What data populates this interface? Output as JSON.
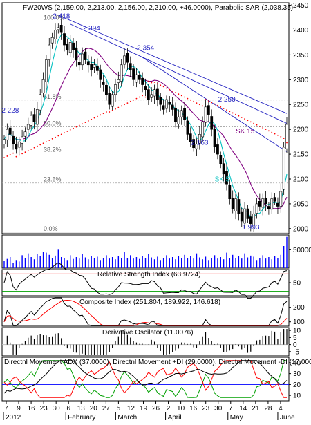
{
  "chart_data": {
    "type": "candlestick",
    "main": {
      "title": "FW20WS (2,159.00, 2,213.00, 2,156.00, 2,210.00, +46.0000), Parabolic SAR (2,038.35)",
      "y_ticks": [
        2000,
        2050,
        2100,
        2150,
        2200,
        2250,
        2300,
        2350,
        2400,
        2450
      ],
      "y_tick_labels": [
        "2000",
        "2050",
        "2100",
        "2150",
        "2200",
        "2250",
        "2300",
        "2350",
        "2400",
        "2450"
      ],
      "ylim": [
        1990,
        2455
      ],
      "fib_levels": [
        {
          "label": "100.0%",
          "value": 2418
        },
        {
          "label": "61.8%",
          "value": 2259
        },
        {
          "label": "50.0%",
          "value": 2205
        },
        {
          "label": "38.2%",
          "value": 2152
        },
        {
          "label": "23.6%",
          "value": 2092
        },
        {
          "label": "0.0%",
          "value": 1993
        }
      ],
      "peak_labels": [
        {
          "text": "2 418",
          "x": 18,
          "y": 2418
        },
        {
          "text": "2 394",
          "x": 28,
          "y": 2394
        },
        {
          "text": "2 354",
          "x": 46,
          "y": 2354
        },
        {
          "text": "2 228",
          "x": 1,
          "y": 2228
        },
        {
          "text": "2 250",
          "x": 73,
          "y": 2250
        },
        {
          "text": "2 163",
          "x": 64,
          "y": 2163
        },
        {
          "text": "1 993",
          "x": 81,
          "y": 1993
        }
      ],
      "ma_labels": [
        {
          "text": "SK 15",
          "x": 77,
          "y": 2192
        },
        {
          "text": "SK 5",
          "x": 70,
          "y": 2095
        }
      ],
      "x_start_day": 0,
      "closes": [
        2180,
        2200,
        2190,
        2170,
        2160,
        2175,
        2185,
        2195,
        2210,
        2228,
        2215,
        2240,
        2270,
        2300,
        2340,
        2370,
        2385,
        2400,
        2405,
        2395,
        2370,
        2360,
        2375,
        2360,
        2340,
        2330,
        2352,
        2340,
        2330,
        2320,
        2330,
        2318,
        2300,
        2290,
        2270,
        2250,
        2270,
        2290,
        2300,
        2330,
        2348,
        2335,
        2320,
        2300,
        2310,
        2300,
        2290,
        2280,
        2260,
        2270,
        2280,
        2260,
        2250,
        2240,
        2260,
        2250,
        2240,
        2215,
        2225,
        2238,
        2220,
        2190,
        2175,
        2163,
        2170,
        2190,
        2215,
        2245,
        2230,
        2200,
        2165,
        2150,
        2130,
        2110,
        2090,
        2060,
        2040,
        2060,
        2030,
        2015,
        2040,
        2020,
        2010,
        2030,
        2050,
        2045,
        2060,
        2050,
        2040,
        2060,
        2055,
        2045,
        2075,
        2164,
        2210
      ],
      "sar_dots": [],
      "overlays": [
        "SK 15",
        "SK 5"
      ]
    },
    "volume": {
      "y_ticks": [
        50000
      ],
      "y_tick_labels": [
        "50000"
      ],
      "ylim": [
        0,
        90000
      ],
      "values": [
        20000,
        25000,
        30000,
        15000,
        22000,
        18000,
        35000,
        28000,
        40000,
        30000,
        24000,
        38000,
        32000,
        45000,
        42000,
        36000,
        28000,
        34000,
        50000,
        30000,
        27000,
        22000,
        35000,
        25000,
        30000,
        26000,
        38000,
        29000,
        24000,
        33000,
        27000,
        31000,
        22000,
        28000,
        35000,
        26000,
        30000,
        24000,
        32000,
        27000,
        45000,
        28000,
        35000,
        26000,
        30000,
        25000,
        33000,
        27000,
        38000,
        29000,
        24000,
        31000,
        22000,
        28000,
        35000,
        26000,
        30000,
        24000,
        32000,
        27000,
        36000,
        28000,
        33000,
        26000,
        40000,
        29000,
        24000,
        31000,
        22000,
        28000,
        35000,
        26000,
        30000,
        24000,
        42000,
        27000,
        36000,
        28000,
        33000,
        26000,
        40000,
        29000,
        34000,
        31000,
        22000,
        28000,
        35000,
        26000,
        30000,
        24000,
        32000,
        27000,
        36000,
        60000,
        85000
      ]
    },
    "rsi": {
      "title": "Relative Strength Index (63.9724)",
      "y_ticks": [
        50
      ],
      "y_tick_labels": [
        "50"
      ],
      "ylim": [
        20,
        80
      ],
      "levels": [
        70,
        30
      ]
    },
    "composite": {
      "title": "Composite Index (251.804, 189.922, 146.618)",
      "y_ticks": [
        100,
        200
      ],
      "y_tick_labels": [
        "100",
        "200"
      ],
      "ylim": [
        70,
        270
      ]
    },
    "derivative": {
      "title": "Derivative Oscilator (11.0076)",
      "y_ticks": [
        -5,
        0,
        5,
        10
      ],
      "y_tick_labels": [
        "-5",
        "0",
        "5",
        "10"
      ],
      "ylim": [
        -8,
        12
      ]
    },
    "dmi": {
      "title": "Directnl Movement ADX (37.0000), Directnl Movement +DI (29.0000), Directnl Movement -DI (17.0000)",
      "y_ticks": [
        10,
        20,
        30,
        40
      ],
      "y_tick_labels": [
        "10",
        "20",
        "30",
        "40"
      ],
      "ylim": [
        5,
        45
      ],
      "level": 20
    },
    "x_axis": {
      "day_labels": [
        "7",
        "9",
        "16",
        "23",
        "30",
        "6",
        "13",
        "20",
        "27",
        "5",
        "12",
        "19",
        "26",
        "2",
        "10",
        "16",
        "23",
        "30",
        "7",
        "14",
        "21",
        "28",
        "4"
      ],
      "month_labels": [
        "2012",
        "February",
        "March",
        "April",
        "May",
        "June"
      ]
    },
    "colors": {
      "candle": "#000000",
      "sar": "#ff0000",
      "sk15": "#800080",
      "sk5": "#00c0c0",
      "trendline": "#2020c0",
      "fib_line": "#a0a0a0",
      "volume": "#0000ff",
      "rsi_line": "#000000",
      "rsi_upper": "#ff0000",
      "rsi_lower": "#00a000",
      "composite_line": "#000000",
      "composite_signal": "#ff0000",
      "dmi_adx": "#000000",
      "dmi_plus": "#00a000",
      "dmi_minus": "#ff0000",
      "dmi_level": "#0000ff"
    }
  }
}
